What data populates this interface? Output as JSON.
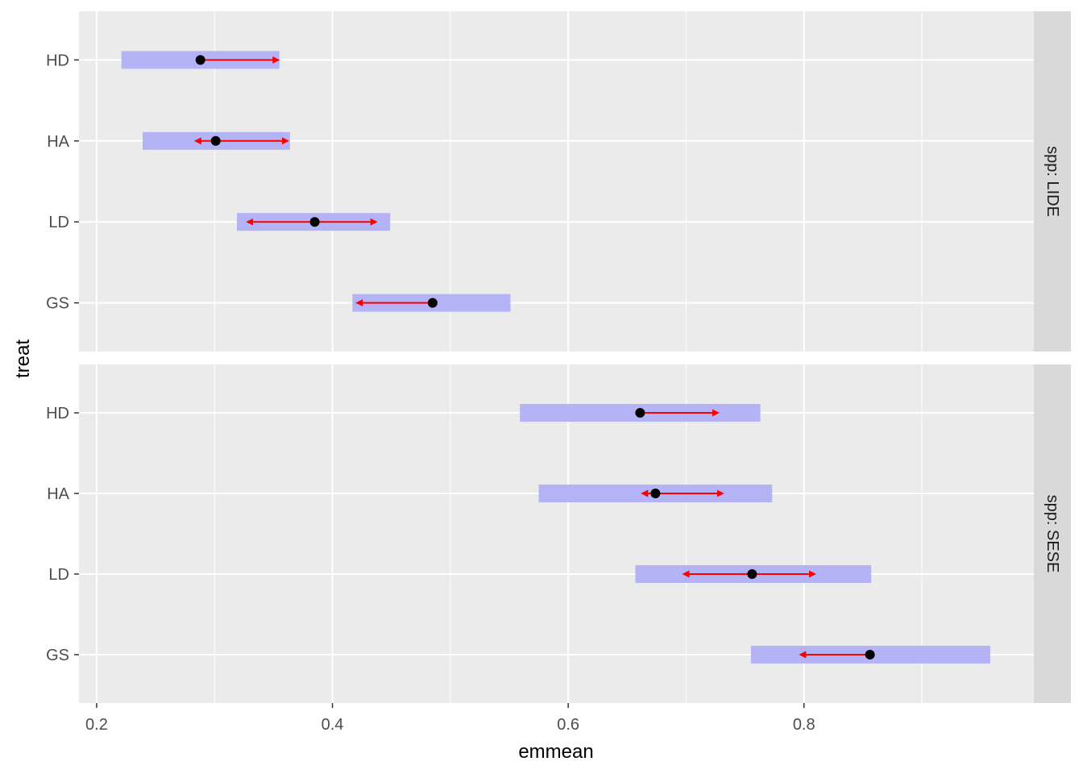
{
  "chart_data": {
    "type": "emmeans-comparison",
    "xlabel": "emmean",
    "ylabel": "treat",
    "xlim": [
      0.185,
      0.995
    ],
    "x_ticks": [
      0.2,
      0.4,
      0.6,
      0.8
    ],
    "x_tick_labels": [
      "0.2",
      "0.4",
      "0.6",
      "0.8"
    ],
    "categories": [
      "HD",
      "HA",
      "LD",
      "GS"
    ],
    "grid": true,
    "colors": {
      "panel_bg": "#ebebeb",
      "strip_bg": "#d9d9d9",
      "grid": "#ffffff",
      "ci_bar": "#b3b3f5",
      "arrow": "#ff0000",
      "point": "#000000"
    },
    "panels": [
      {
        "strip": "spp: LIDE",
        "rows": [
          {
            "treat": "HD",
            "emmean": 0.288,
            "lower": 0.221,
            "upper": 0.355,
            "arrow_left": null,
            "arrow_right": 0.354
          },
          {
            "treat": "HA",
            "emmean": 0.301,
            "lower": 0.239,
            "upper": 0.364,
            "arrow_left": 0.284,
            "arrow_right": 0.362
          },
          {
            "treat": "LD",
            "emmean": 0.385,
            "lower": 0.319,
            "upper": 0.449,
            "arrow_left": 0.328,
            "arrow_right": 0.437
          },
          {
            "treat": "GS",
            "emmean": 0.485,
            "lower": 0.417,
            "upper": 0.551,
            "arrow_left": 0.421,
            "arrow_right": null
          }
        ]
      },
      {
        "strip": "spp: SESE",
        "rows": [
          {
            "treat": "HD",
            "emmean": 0.661,
            "lower": 0.559,
            "upper": 0.763,
            "arrow_left": null,
            "arrow_right": 0.727
          },
          {
            "treat": "HA",
            "emmean": 0.674,
            "lower": 0.575,
            "upper": 0.773,
            "arrow_left": 0.663,
            "arrow_right": 0.731
          },
          {
            "treat": "LD",
            "emmean": 0.756,
            "lower": 0.657,
            "upper": 0.857,
            "arrow_left": 0.698,
            "arrow_right": 0.809
          },
          {
            "treat": "GS",
            "emmean": 0.856,
            "lower": 0.755,
            "upper": 0.958,
            "arrow_left": 0.797,
            "arrow_right": null
          }
        ]
      }
    ]
  }
}
